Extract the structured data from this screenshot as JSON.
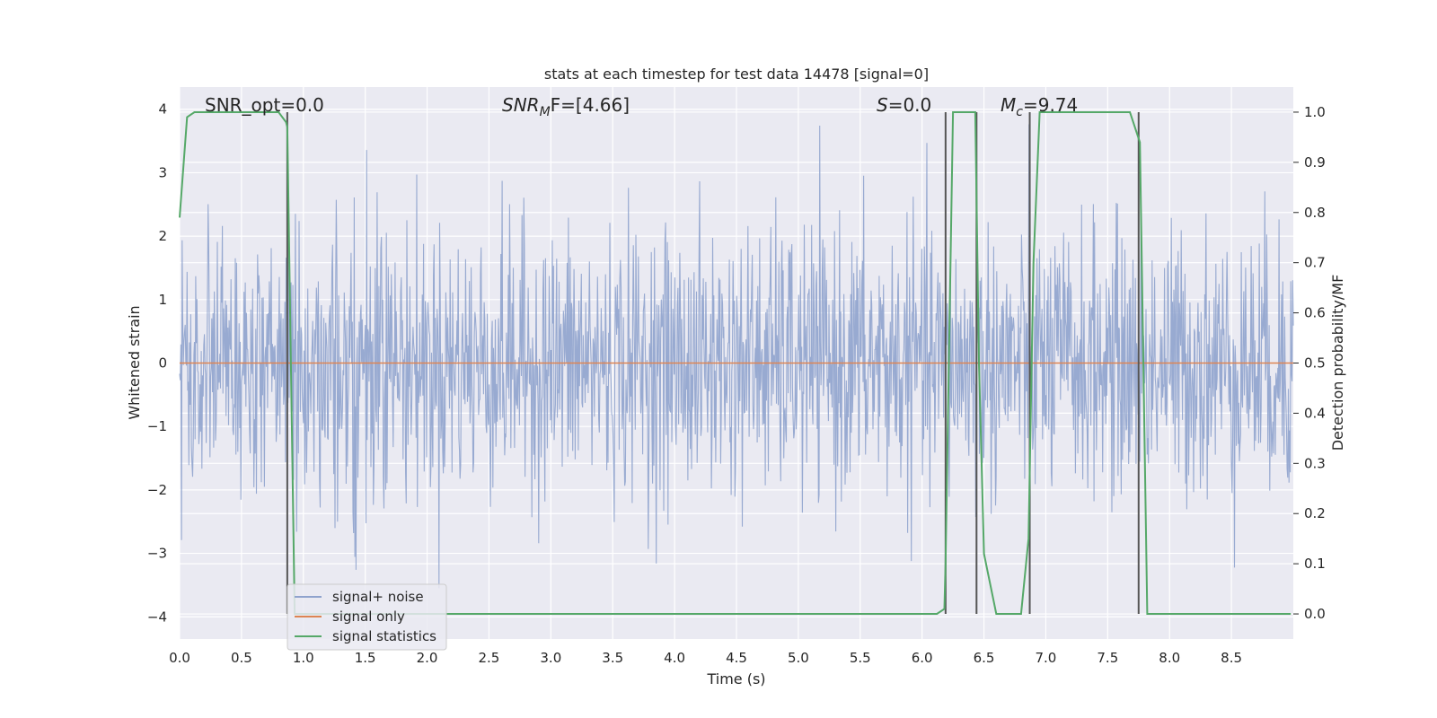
{
  "chart_data": {
    "type": "line",
    "title": "stats at each timestep for test data 14478 [signal=0]",
    "xlabel": "Time (s)",
    "ylabel_left": "Whitened strain",
    "ylabel_right": "Detection probability/MF",
    "xlim": [
      0.0,
      9.0
    ],
    "ylim_left": [
      -4.35,
      4.35
    ],
    "ylim_right": [
      -0.05,
      1.05
    ],
    "x_ticks": [
      "0.0",
      "0.5",
      "1.0",
      "1.5",
      "2.0",
      "2.5",
      "3.0",
      "3.5",
      "4.0",
      "4.5",
      "5.0",
      "5.5",
      "6.0",
      "6.5",
      "7.0",
      "7.5",
      "8.0",
      "8.5"
    ],
    "y_left_ticks": [
      {
        "value": 4,
        "label": "4"
      },
      {
        "value": 3,
        "label": "3"
      },
      {
        "value": 2,
        "label": "2"
      },
      {
        "value": 1,
        "label": "1"
      },
      {
        "value": 0,
        "label": "0"
      },
      {
        "value": -1,
        "label": "−1"
      },
      {
        "value": -2,
        "label": "−2"
      },
      {
        "value": -3,
        "label": "−3"
      },
      {
        "value": -4,
        "label": "−4"
      }
    ],
    "y_right_ticks": [
      "0.0",
      "0.1",
      "0.2",
      "0.3",
      "0.4",
      "0.5",
      "0.6",
      "0.7",
      "0.8",
      "0.9",
      "1.0"
    ],
    "annotations": {
      "snr_opt": "SNR_opt=0.0",
      "snr_mf_main": "SNR",
      "snr_mf_sub": "M",
      "snr_mf_rest": "F=[4.66]",
      "s_italic": "S",
      "s_rest": "=0.0",
      "mc_italic": "M",
      "mc_sub": "c",
      "mc_rest": "=9.74"
    },
    "legend": {
      "position": "lower-left",
      "entries": [
        "signal+ noise",
        "signal only",
        "signal statistics"
      ]
    },
    "series": [
      {
        "name": "signal+ noise",
        "color": "#8fa3cd",
        "kind": "noise",
        "amplitude_envelope": [
          -3.8,
          4.0
        ]
      },
      {
        "name": "signal only",
        "color": "#dd8452",
        "kind": "constant",
        "value": 0.0
      },
      {
        "name": "signal statistics",
        "color": "#55a868",
        "axis": "right",
        "x": [
          0.0,
          0.06,
          0.12,
          0.2,
          0.5,
          0.8,
          0.86,
          0.87,
          0.93,
          1.0,
          2.0,
          3.0,
          4.0,
          5.0,
          6.0,
          6.12,
          6.18,
          6.19,
          6.25,
          6.3,
          6.4,
          6.43,
          6.46,
          6.5,
          6.6,
          6.8,
          6.86,
          6.9,
          6.95,
          7.0,
          7.5,
          7.68,
          7.76,
          7.82,
          8.0,
          8.5,
          8.98
        ],
        "values": [
          0.79,
          0.99,
          1.0,
          1.0,
          1.0,
          1.0,
          0.98,
          0.97,
          0.0,
          0.0,
          0.0,
          0.0,
          0.0,
          0.0,
          0.0,
          0.0,
          0.01,
          0.1,
          1.0,
          1.0,
          1.0,
          1.0,
          0.5,
          0.12,
          0.0,
          0.0,
          0.15,
          0.7,
          1.0,
          1.0,
          1.0,
          1.0,
          0.94,
          0.0,
          0.0,
          0.0,
          0.0
        ]
      }
    ],
    "vertical_markers": [
      {
        "x": 0.87,
        "color": "#555555"
      },
      {
        "x": 6.19,
        "color": "#555555"
      },
      {
        "x": 6.44,
        "color": "#555555"
      },
      {
        "x": 6.87,
        "color": "#555555"
      },
      {
        "x": 7.75,
        "color": "#555555"
      }
    ],
    "colors": {
      "plot_bg": "#eaeaf2",
      "grid": "#ffffff",
      "text": "#262626"
    }
  }
}
